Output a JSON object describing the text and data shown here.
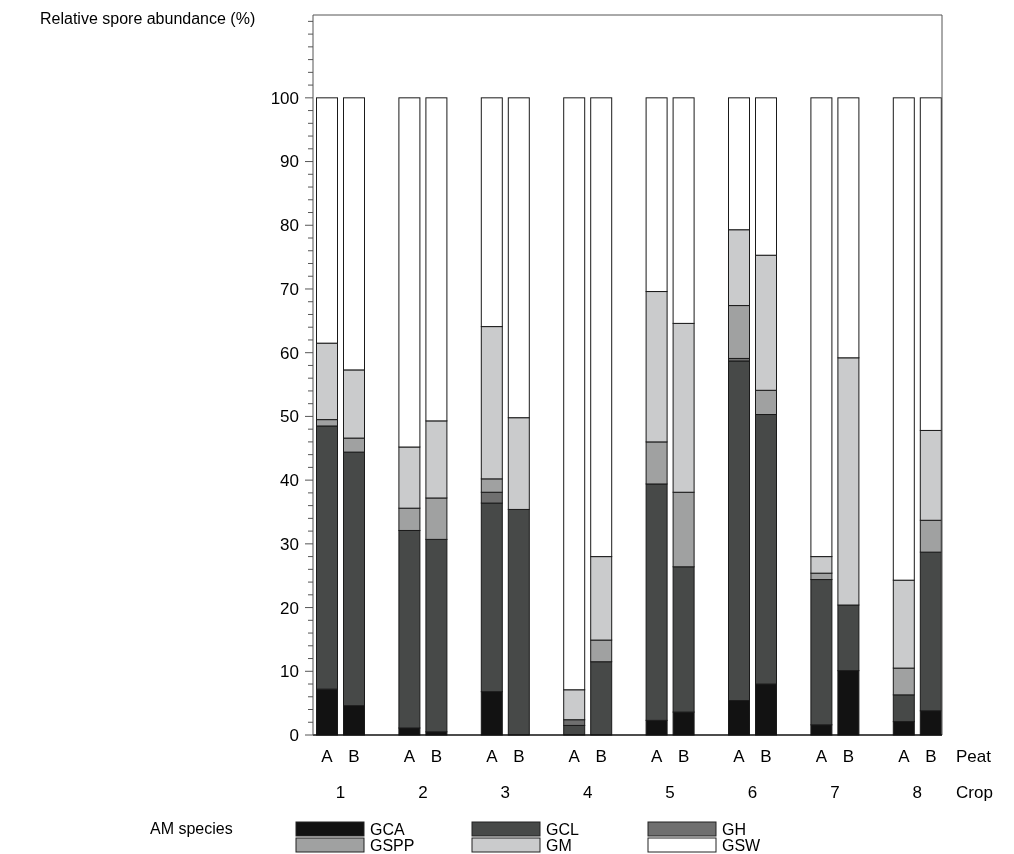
{
  "chart_data": {
    "type": "bar",
    "stacked": true,
    "ylabel": "Relative spore abundance (%)",
    "legend_title": "AM species",
    "legend": "bottom",
    "categories": [
      "A",
      "B",
      "A",
      "B",
      "A",
      "B",
      "A",
      "B",
      "A",
      "B",
      "A",
      "B",
      "A",
      "B",
      "A",
      "B"
    ],
    "annotations": [
      "1",
      "2",
      "3",
      "4",
      "5",
      "6",
      "7",
      "8",
      "Peat",
      "Crop"
    ],
    "ylim": [
      0,
      113
    ],
    "yticks": [
      0,
      {
        "value": 2,
        "label": null
      },
      {
        "value": 4,
        "label": null
      },
      {
        "value": 6,
        "label": null
      },
      {
        "value": 8,
        "label": null
      },
      10,
      {
        "value": 12,
        "label": null
      },
      {
        "value": 14,
        "label": null
      },
      {
        "value": 16,
        "label": null
      },
      {
        "value": 18,
        "label": null
      },
      20,
      {
        "value": 22,
        "label": null
      },
      {
        "value": 24,
        "label": null
      },
      {
        "value": 26,
        "label": null
      },
      {
        "value": 28,
        "label": null
      },
      30,
      {
        "value": 32,
        "label": null
      },
      {
        "value": 34,
        "label": null
      },
      {
        "value": 36,
        "label": null
      },
      {
        "value": 38,
        "label": null
      },
      40,
      {
        "value": 42,
        "label": null
      },
      {
        "value": 44,
        "label": null
      },
      {
        "value": 46,
        "label": null
      },
      {
        "value": 48,
        "label": null
      },
      50,
      {
        "value": 52,
        "label": null
      },
      {
        "value": 54,
        "label": null
      },
      {
        "value": 56,
        "label": null
      },
      {
        "value": 58,
        "label": null
      },
      60,
      {
        "value": 62,
        "label": null
      },
      {
        "value": 64,
        "label": null
      },
      {
        "value": 66,
        "label": null
      },
      {
        "value": 68,
        "label": null
      },
      70,
      {
        "value": 72,
        "label": null
      },
      {
        "value": 74,
        "label": null
      },
      {
        "value": 76,
        "label": null
      },
      {
        "value": 78,
        "label": null
      },
      80,
      {
        "value": 82,
        "label": null
      },
      {
        "value": 84,
        "label": null
      },
      {
        "value": 86,
        "label": null
      },
      {
        "value": 88,
        "label": null
      },
      90,
      {
        "value": 92,
        "label": null
      },
      {
        "value": 94,
        "label": null
      },
      {
        "value": 96,
        "label": null
      },
      {
        "value": 98,
        "label": null
      },
      100,
      {
        "value": 102,
        "label": null
      },
      {
        "value": 104,
        "label": null
      },
      {
        "value": 106,
        "label": null
      },
      {
        "value": 108,
        "label": null
      },
      {
        "value": 110,
        "label": null
      },
      {
        "value": 112,
        "label": null
      }
    ],
    "series": [
      {
        "name": "GCA",
        "color": "#121212",
        "values": [
          7.2,
          4.6,
          1.1,
          0.5,
          6.8,
          0,
          0,
          0,
          2.3,
          3.6,
          5.4,
          8.0,
          1.6,
          10.1,
          2.1,
          3.8
        ]
      },
      {
        "name": "GCL",
        "color": "#474948",
        "values": [
          41.3,
          39.8,
          31.0,
          30.2,
          29.6,
          35.4,
          1.5,
          11.5,
          37.1,
          22.8,
          53.3,
          42.3,
          22.8,
          10.3,
          4.2,
          24.9
        ]
      },
      {
        "name": "GH",
        "color": "#6f6f6f",
        "values": [
          0,
          0,
          0,
          0,
          1.7,
          0,
          0.9,
          0,
          0,
          0,
          0.4,
          0,
          0,
          0,
          0,
          0
        ]
      },
      {
        "name": "GSPP",
        "color": "#a0a1a1",
        "values": [
          1.0,
          2.2,
          3.5,
          6.5,
          2.1,
          0,
          0,
          3.4,
          6.6,
          11.7,
          8.3,
          3.8,
          1.0,
          0,
          4.2,
          5.0
        ]
      },
      {
        "name": "GM",
        "color": "#cacbcc",
        "values": [
          12.0,
          10.7,
          9.6,
          12.1,
          23.9,
          14.4,
          4.7,
          13.1,
          23.6,
          26.5,
          11.9,
          21.2,
          2.6,
          38.8,
          13.8,
          14.1
        ]
      },
      {
        "name": "GSW",
        "color": "#ffffff",
        "values": [
          38.5,
          42.7,
          54.8,
          50.7,
          35.9,
          50.2,
          92.9,
          72.0,
          30.4,
          35.4,
          20.7,
          24.7,
          72.0,
          40.8,
          75.7,
          52.2
        ]
      }
    ]
  }
}
